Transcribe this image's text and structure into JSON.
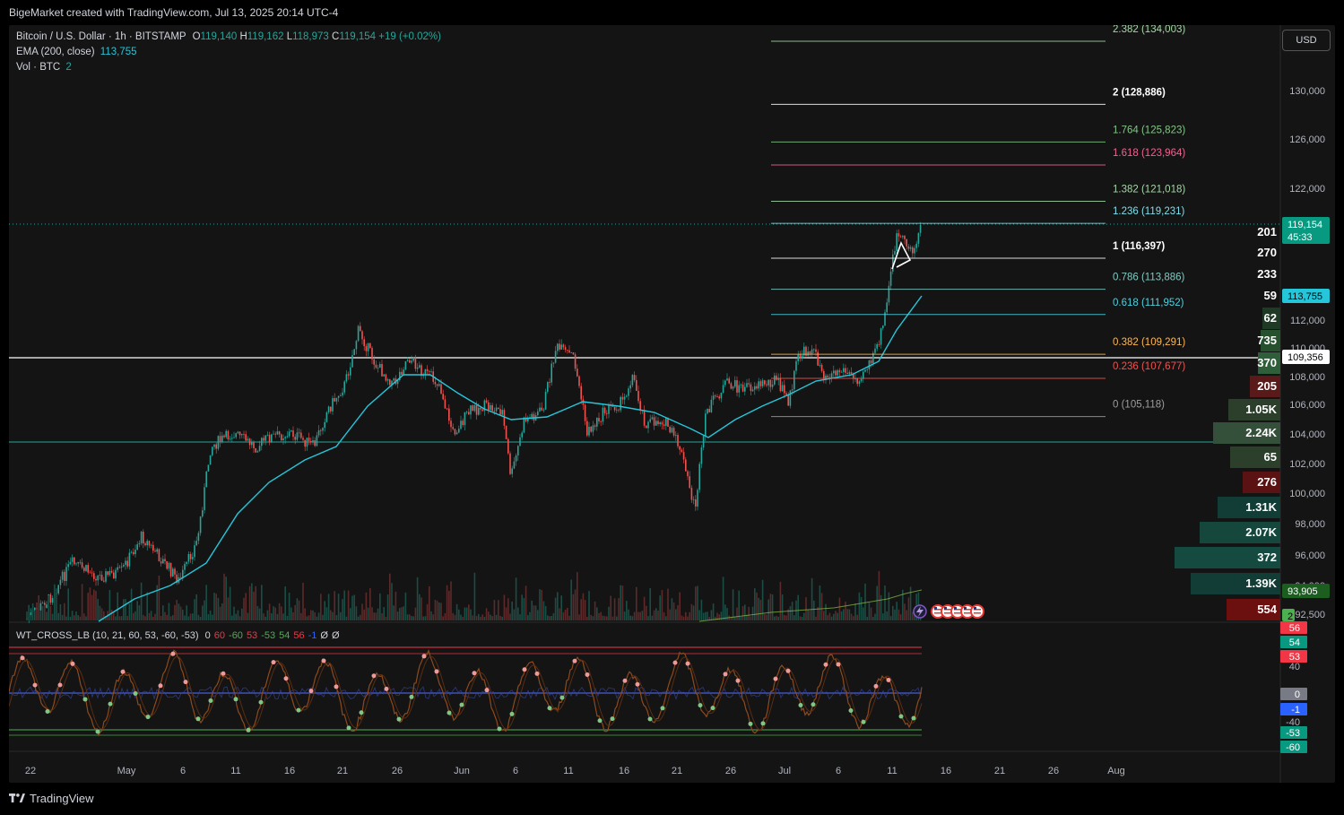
{
  "header": {
    "caption": "BigeMarket created with TradingView.com, Jul 13, 2025 20:14 UTC-4"
  },
  "legend": {
    "symbol": "Bitcoin / U.S. Dollar · 1h · BITSTAMP",
    "open_label": "O",
    "open": "119,140",
    "high_label": "H",
    "high": "119,162",
    "low_label": "L",
    "low": "118,973",
    "close_label": "C",
    "close": "119,154",
    "change": "+19 (+0.02%)",
    "ema_label": "EMA (200, close)",
    "ema_value": "113,755",
    "vol_label": "Vol · BTC",
    "vol_value": "2"
  },
  "currency_button": "USD",
  "price_axis": {
    "ticks": [
      "130,000",
      "126,000",
      "122,000",
      "112,000",
      "110,000",
      "108,000",
      "106,000",
      "104,000",
      "102,000",
      "100,000",
      "98,000",
      "96,000",
      "94,000",
      "92,500"
    ],
    "last_price": "119,154",
    "countdown": "45:33",
    "ema_tag": "113,755",
    "line_tag": "109,356",
    "ema2_tag": "93,905",
    "vol_tag": "2"
  },
  "fib_levels": [
    {
      "label": "2.382 (134,003)",
      "price": 134003,
      "color": "#a5d6a7"
    },
    {
      "label": "2 (128,886)",
      "price": 128886,
      "color": "#ffffff"
    },
    {
      "label": "1.764 (125,823)",
      "price": 125823,
      "color": "#81c784"
    },
    {
      "label": "1.618 (123,964)",
      "price": 123964,
      "color": "#f06292"
    },
    {
      "label": "1.382 (121,018)",
      "price": 121018,
      "color": "#a5d6a7"
    },
    {
      "label": "1.236 (119,231)",
      "price": 119231,
      "color": "#80deea"
    },
    {
      "label": "1 (116,397)",
      "price": 116397,
      "color": "#ffffff"
    },
    {
      "label": "0.786 (113,886)",
      "price": 113886,
      "color": "#80cbc4"
    },
    {
      "label": "0.618 (111,952)",
      "price": 111952,
      "color": "#4dd0e1"
    },
    {
      "label": "0.382 (109,291)",
      "price": 109291,
      "color": "#ffb74d"
    },
    {
      "label": "0.236 (107,677)",
      "price": 107677,
      "color": "#ef5350"
    },
    {
      "label": "0 (105,118)",
      "price": 105118,
      "color": "#9e9e9e"
    }
  ],
  "volume_profile": [
    {
      "label": "201",
      "color": "#141414"
    },
    {
      "label": "270",
      "color": "#141414"
    },
    {
      "label": "233",
      "color": "#141414"
    },
    {
      "label": "59",
      "color": "#141414"
    },
    {
      "label": "62",
      "color": "#1e3a25"
    },
    {
      "label": "735",
      "color": "#27502f"
    },
    {
      "label": "370",
      "color": "#2f5f3a"
    },
    {
      "label": "205",
      "color": "#5a1a1a"
    },
    {
      "label": "1.05K",
      "color": "#2b3f2b"
    },
    {
      "label": "2.24K",
      "color": "#34503a"
    },
    {
      "label": "65",
      "color": "#2b3f2b"
    },
    {
      "label": "276",
      "color": "#5a1212"
    },
    {
      "label": "1.31K",
      "color": "#123d36"
    },
    {
      "label": "2.07K",
      "color": "#15473c"
    },
    {
      "label": "372",
      "color": "#154a40"
    },
    {
      "label": "1.39K",
      "color": "#123d36"
    },
    {
      "label": "554",
      "color": "#6b0f0f"
    }
  ],
  "time_axis": [
    "22",
    "May",
    "6",
    "11",
    "16",
    "21",
    "26",
    "Jun",
    "6",
    "11",
    "16",
    "21",
    "26",
    "Jul",
    "6",
    "11",
    "16",
    "21",
    "26",
    "Aug"
  ],
  "indicator": {
    "name": "WT_CROSS_LB (10, 21, 60, 53, -60, -53)",
    "values": [
      {
        "text": "0",
        "color": "#d1d4dc"
      },
      {
        "text": "60",
        "color": "#f23645"
      },
      {
        "text": "-60",
        "color": "#4caf50"
      },
      {
        "text": "53",
        "color": "#f23645"
      },
      {
        "text": "-53",
        "color": "#4caf50"
      },
      {
        "text": "54",
        "color": "#4caf50"
      },
      {
        "text": "56",
        "color": "#f23645"
      },
      {
        "text": "-1",
        "color": "#2962ff"
      },
      {
        "text": "Ø",
        "color": "#d1d4dc"
      },
      {
        "text": "Ø",
        "color": "#d1d4dc"
      }
    ],
    "axis_tags": [
      {
        "text": "56",
        "bg": "#f23645"
      },
      {
        "text": "54",
        "bg": "#089981"
      },
      {
        "text": "53",
        "bg": "#f23645"
      },
      {
        "text": "40",
        "bg": ""
      },
      {
        "text": "0",
        "bg": "#787b86"
      },
      {
        "text": "-1",
        "bg": "#2962ff"
      },
      {
        "text": "-40",
        "bg": ""
      },
      {
        "text": "-53",
        "bg": "#089981"
      },
      {
        "text": "-60",
        "bg": "#089981"
      }
    ]
  },
  "footer": {
    "brand": "TradingView"
  },
  "colors": {
    "up": "#26a69a",
    "down": "#ef5350",
    "ema": "#26c6da",
    "background": "#141414"
  }
}
